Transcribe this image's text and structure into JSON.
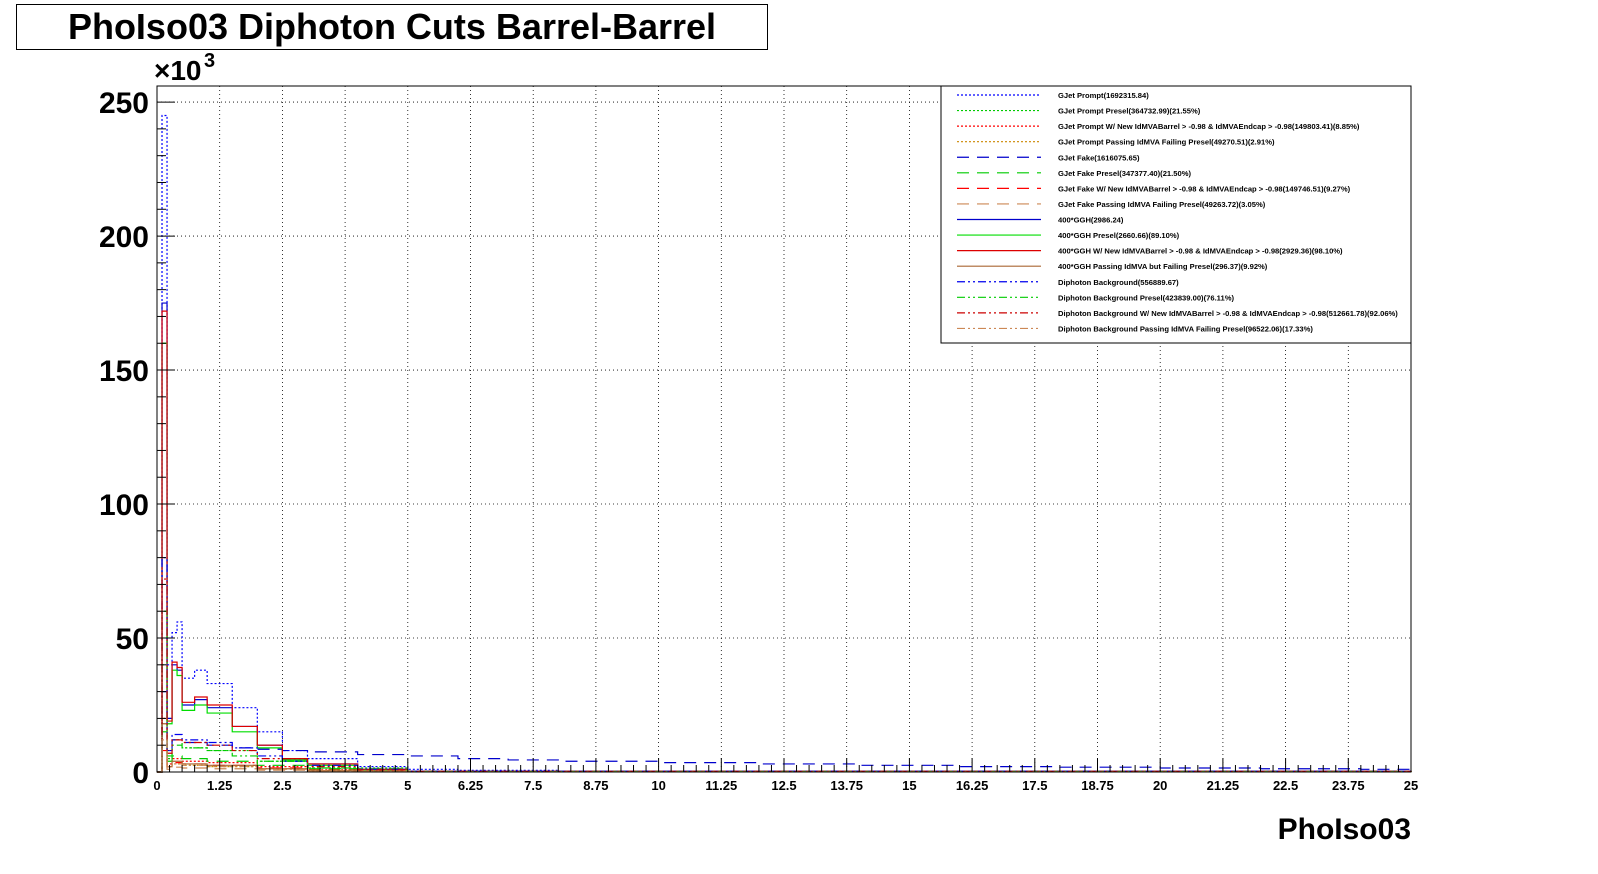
{
  "chart_data": {
    "type": "line",
    "title": "PhoIso03 Diphoton Cuts Barrel-Barrel",
    "xlabel": "PhoIso03",
    "ylabel": "",
    "y_multiplier_label": "×10",
    "y_multiplier_exponent": "3",
    "xlim": [
      0,
      25
    ],
    "ylim": [
      0,
      256
    ],
    "x_ticks": [
      0,
      1.25,
      2.5,
      3.75,
      5,
      6.25,
      7.5,
      8.75,
      10,
      11.25,
      12.5,
      13.75,
      15,
      16.25,
      17.5,
      18.75,
      20,
      21.25,
      22.5,
      23.75,
      25
    ],
    "x_tick_labels": [
      "0",
      "1.25",
      "2.5",
      "3.75",
      "5",
      "6.25",
      "7.5",
      "8.75",
      "10",
      "11.25",
      "12.5",
      "13.75",
      "15",
      "16.25",
      "17.5",
      "18.75",
      "20",
      "21.25",
      "22.5",
      "23.75",
      "25"
    ],
    "y_ticks": [
      0,
      50,
      100,
      150,
      200,
      250
    ],
    "y_tick_labels": [
      "0",
      "50",
      "100",
      "150",
      "200",
      "250"
    ],
    "grid": true,
    "legend_position": "top-right",
    "series": [
      {
        "name": "GJet Prompt(1692315.84)",
        "color": "#0000ff",
        "dash": "2,2",
        "x": [
          0,
          0.1,
          0.2,
          0.3,
          0.4,
          0.5,
          0.75,
          1.0,
          1.5,
          2.0,
          2.5,
          3.0,
          4.0,
          5.0,
          6.0,
          8.0,
          10,
          15,
          20,
          25
        ],
        "y": [
          0,
          245,
          40,
          52,
          56,
          35,
          38,
          33,
          24,
          15,
          8,
          5,
          2,
          1,
          0.6,
          0.3,
          0.2,
          0.1,
          0.05,
          0
        ]
      },
      {
        "name": "GJet Prompt Presel(364732.99)(21.55%)",
        "color": "#00cc00",
        "dash": "2,2",
        "x": [
          0,
          0.1,
          0.2,
          0.3,
          0.5,
          1.0,
          2.0,
          3.0,
          5.0,
          8.0,
          15,
          25
        ],
        "y": [
          0,
          40,
          5,
          12,
          9,
          8,
          4,
          1.5,
          0.3,
          0.1,
          0.05,
          0
        ]
      },
      {
        "name": "GJet Prompt W/ New IdMVABarrel > -0.98 & IdMVAEndcap > -0.98(149803.41)(8.85%)",
        "color": "#ff0000",
        "dash": "2,2",
        "x": [
          0,
          0.1,
          0.2,
          0.3,
          0.5,
          1.0,
          2.0,
          3.0,
          5.0,
          8.0,
          15,
          25
        ],
        "y": [
          0,
          20,
          3,
          5,
          4,
          3.5,
          2,
          0.8,
          0.2,
          0.05,
          0.02,
          0
        ]
      },
      {
        "name": "GJet Prompt Passing IdMVA Failing Presel(49270.51)(2.91%)",
        "color": "#cc8800",
        "dash": "2,2",
        "x": [
          0,
          0.1,
          0.2,
          0.3,
          0.5,
          1.0,
          2.0,
          3.0,
          5.0,
          8.0,
          25
        ],
        "y": [
          0,
          10,
          2,
          3,
          2.5,
          2,
          1.2,
          0.5,
          0.1,
          0.03,
          0
        ]
      },
      {
        "name": "GJet Fake(1616075.65)",
        "color": "#0000cc",
        "dash": "12,8",
        "x": [
          0,
          0.1,
          0.2,
          0.3,
          0.5,
          1.0,
          1.5,
          2.0,
          2.5,
          3.0,
          4.0,
          5.0,
          6.0,
          7.0,
          8.0,
          10,
          12,
          14,
          16,
          18,
          20,
          22,
          24,
          25
        ],
        "y": [
          0,
          30,
          8,
          12,
          11,
          10,
          9,
          8.5,
          8,
          7.5,
          6.5,
          6,
          5,
          4.5,
          4,
          3.5,
          3,
          2.5,
          2,
          1.8,
          1.5,
          1.2,
          1,
          0.8
        ]
      },
      {
        "name": "GJet Fake Presel(347377.40)(21.50%)",
        "color": "#00cc00",
        "dash": "12,8",
        "x": [
          0,
          0.1,
          0.2,
          0.3,
          0.5,
          1.0,
          2.0,
          3.0,
          5.0,
          8.0,
          15,
          25
        ],
        "y": [
          0,
          15,
          4,
          6,
          5,
          4,
          2.5,
          1.2,
          0.3,
          0.1,
          0.05,
          0
        ]
      },
      {
        "name": "GJet Fake W/ New IdMVABarrel > -0.98 & IdMVAEndcap > -0.98(149746.51)(9.27%)",
        "color": "#ff0000",
        "dash": "12,8",
        "x": [
          0,
          0.1,
          0.2,
          0.3,
          0.5,
          1.0,
          2.0,
          3.0,
          5.0,
          8.0,
          25
        ],
        "y": [
          0,
          8,
          2,
          3.5,
          3,
          2.5,
          1.5,
          0.7,
          0.2,
          0.05,
          0
        ]
      },
      {
        "name": "GJet Fake Passing IdMVA Failing Presel(49263.72)(3.05%)",
        "color": "#cc8855",
        "dash": "12,8",
        "x": [
          0,
          0.1,
          0.2,
          0.3,
          0.5,
          1.0,
          2.0,
          3.0,
          5.0,
          25
        ],
        "y": [
          0,
          4,
          1,
          1.8,
          1.5,
          1.2,
          0.7,
          0.3,
          0.05,
          0
        ]
      },
      {
        "name": "400*GGH(2986.24)",
        "color": "#0000cc",
        "dash": "",
        "x": [
          0,
          0.1,
          0.2,
          0.3,
          0.4,
          0.5,
          0.75,
          1.0,
          1.5,
          2.0,
          2.5,
          3.0,
          4.0,
          5.0,
          25
        ],
        "y": [
          0,
          175,
          20,
          40,
          38,
          25,
          27,
          24,
          17,
          10,
          5,
          3,
          1,
          0.3,
          0
        ]
      },
      {
        "name": "400*GGH Presel(2660.66)(89.10%)",
        "color": "#00dd00",
        "dash": "",
        "x": [
          0,
          0.1,
          0.2,
          0.3,
          0.4,
          0.5,
          0.75,
          1.0,
          1.5,
          2.0,
          2.5,
          3.0,
          4.0,
          5.0,
          25
        ],
        "y": [
          0,
          160,
          18,
          38,
          36,
          23,
          25,
          22,
          15,
          9,
          4.5,
          2.5,
          0.8,
          0.2,
          0
        ]
      },
      {
        "name": "400*GGH W/ New IdMVABarrel > -0.98 & IdMVAEndcap > -0.98(2929.36)(98.10%)",
        "color": "#dd0000",
        "dash": "",
        "x": [
          0,
          0.1,
          0.2,
          0.3,
          0.4,
          0.5,
          0.75,
          1.0,
          1.5,
          2.0,
          2.5,
          3.0,
          4.0,
          5.0,
          25
        ],
        "y": [
          0,
          172,
          19,
          41,
          39,
          26,
          28,
          25,
          17,
          10,
          5,
          3,
          1,
          0.3,
          0
        ]
      },
      {
        "name": "400*GGH Passing IdMVA but Failing Presel(296.37)(9.92%)",
        "color": "#aa6633",
        "dash": "",
        "x": [
          0,
          0.1,
          0.2,
          0.3,
          0.5,
          1.0,
          2.0,
          3.0,
          5.0,
          25
        ],
        "y": [
          0,
          18,
          2,
          4,
          3,
          2.5,
          1.2,
          0.5,
          0.1,
          0
        ]
      },
      {
        "name": "Diphoton Background(556889.67)",
        "color": "#0000ee",
        "dash": "8,3,2,3,2,3",
        "x": [
          0,
          0.1,
          0.2,
          0.3,
          0.5,
          1.0,
          1.5,
          2.0,
          2.5,
          3.0,
          4.0,
          5.0,
          25
        ],
        "y": [
          0,
          80,
          8,
          14,
          12,
          11,
          9,
          6,
          4,
          2.5,
          1,
          0.3,
          0
        ]
      },
      {
        "name": "Diphoton Background Presel(423839.00)(76.11%)",
        "color": "#00cc00",
        "dash": "8,3,2,3,2,3",
        "x": [
          0,
          0.1,
          0.2,
          0.3,
          0.5,
          1.0,
          1.5,
          2.0,
          3.0,
          4.0,
          5.0,
          25
        ],
        "y": [
          0,
          60,
          6,
          10,
          9,
          8,
          6,
          4,
          1.5,
          0.6,
          0.2,
          0
        ]
      },
      {
        "name": "Diphoton Background W/ New IdMVABarrel > -0.98 & IdMVAEndcap > -0.98(512661.78)(92.06%)",
        "color": "#cc0000",
        "dash": "8,3,2,3,2,3",
        "x": [
          0,
          0.1,
          0.2,
          0.3,
          0.5,
          1.0,
          1.5,
          2.0,
          3.0,
          4.0,
          5.0,
          25
        ],
        "y": [
          0,
          72,
          7,
          12,
          11,
          10,
          8,
          5,
          2,
          0.8,
          0.2,
          0
        ]
      },
      {
        "name": "Diphoton Background Passing IdMVA Failing Presel(96522.06)(17.33%)",
        "color": "#cc8855",
        "dash": "8,3,2,3,2,3",
        "x": [
          0,
          0.1,
          0.2,
          0.3,
          0.5,
          1.0,
          2.0,
          3.0,
          5.0,
          25
        ],
        "y": [
          0,
          12,
          2,
          3,
          2.5,
          2,
          1,
          0.4,
          0.05,
          0
        ]
      }
    ]
  }
}
